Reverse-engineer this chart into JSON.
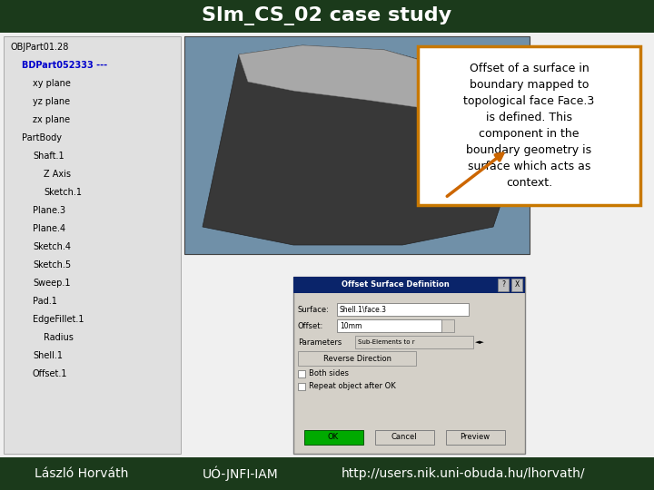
{
  "title": "Slm_CS_02 case study",
  "title_bg_color": "#1b3a1b",
  "title_text_color": "#ffffff",
  "title_fontsize": 16,
  "footer_bg_color": "#1b3a1b",
  "footer_text_color": "#ffffff",
  "footer_texts": [
    "László Horváth",
    "UÓ-JNFI-IAM",
    "http://users.nik.uni-obuda.hu/lhorvath/"
  ],
  "footer_fontsize": 10,
  "main_bg_color": "#f0f0f0",
  "annotation_box_text": "Offset of a surface in\nboundary mapped to\ntopological face Face.3\nis defined. This\ncomponent in the\nboundary geometry is\nsurface which acts as\ncontext.",
  "annotation_box_border_color": "#c87800",
  "annotation_box_bg_color": "#ffffff",
  "annotation_text_fontsize": 9,
  "arrow_color": "#cc6600",
  "left_panel_bg": "#e0e0e0",
  "cad_bg": "#6688aa",
  "dialog_bg": "#d4d0c8",
  "dialog_titlebar_color": "#0a246a",
  "tree_items": [
    {
      "label": "OBJPart01.28",
      "indent": 0,
      "color": "#000000",
      "bold": false
    },
    {
      "label": "BDPart052333 ---",
      "indent": 1,
      "color": "#0000cc",
      "bold": true
    },
    {
      "label": "xy plane",
      "indent": 2,
      "color": "#000000",
      "bold": false
    },
    {
      "label": "yz plane",
      "indent": 2,
      "color": "#000000",
      "bold": false
    },
    {
      "label": "zx plane",
      "indent": 2,
      "color": "#000000",
      "bold": false
    },
    {
      "label": "PartBody",
      "indent": 1,
      "color": "#000000",
      "bold": false
    },
    {
      "label": "Shaft.1",
      "indent": 2,
      "color": "#000000",
      "bold": false
    },
    {
      "label": "Z Axis",
      "indent": 3,
      "color": "#000000",
      "bold": false
    },
    {
      "label": "Sketch.1",
      "indent": 3,
      "color": "#000000",
      "bold": false
    },
    {
      "label": "Plane.3",
      "indent": 2,
      "color": "#000000",
      "bold": false
    },
    {
      "label": "Plane.4",
      "indent": 2,
      "color": "#000000",
      "bold": false
    },
    {
      "label": "Sketch.4",
      "indent": 2,
      "color": "#000000",
      "bold": false
    },
    {
      "label": "Sketch.5",
      "indent": 2,
      "color": "#000000",
      "bold": false
    },
    {
      "label": "Sweep.1",
      "indent": 2,
      "color": "#000000",
      "bold": false
    },
    {
      "label": "Pad.1",
      "indent": 2,
      "color": "#000000",
      "bold": false
    },
    {
      "label": "EdgeFillet.1",
      "indent": 2,
      "color": "#000000",
      "bold": false
    },
    {
      "label": "Radius",
      "indent": 3,
      "color": "#000000",
      "bold": false
    },
    {
      "label": "Shell.1",
      "indent": 2,
      "color": "#000000",
      "bold": false
    },
    {
      "label": "Offset.1",
      "indent": 2,
      "color": "#000000",
      "bold": false
    }
  ]
}
